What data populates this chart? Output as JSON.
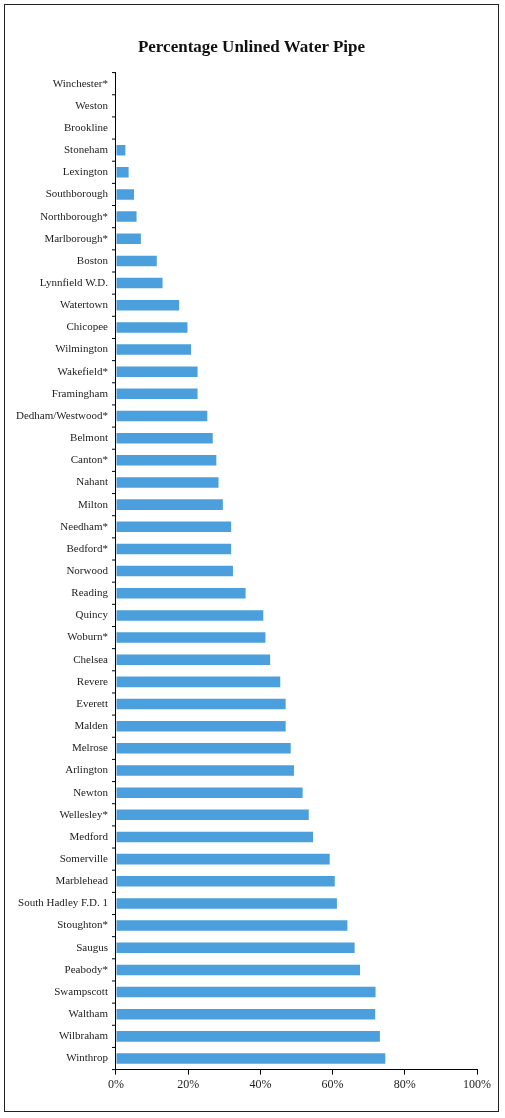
{
  "chart_data": {
    "type": "bar",
    "orientation": "horizontal",
    "title": "Percentage Unlined Water Pipe",
    "categories": [
      "Winchester*",
      "Weston",
      "Brookline",
      "Stoneham",
      "Lexington",
      "Southborough",
      "Northborough*",
      "Marlborough*",
      "Boston",
      "Lynnfield W.D.",
      "Watertown",
      "Chicopee",
      "Wilmington",
      "Wakefield*",
      "Framingham",
      "Dedham/Westwood*",
      "Belmont",
      "Canton*",
      "Nahant",
      "Milton",
      "Needham*",
      "Bedford*",
      "Norwood",
      "Reading",
      "Quincy",
      "Woburn*",
      "Chelsea",
      "Revere",
      "Everett",
      "Malden",
      "Melrose",
      "Arlington",
      "Newton",
      "Wellesley*",
      "Medford",
      "Somerville",
      "Marblehead",
      "South Hadley F.D. 1",
      "Stoughton*",
      "Saugus",
      "Peabody*",
      "Swampscott",
      "Waltham",
      "Wilbraham",
      "Winthrop"
    ],
    "values": [
      0,
      0,
      0,
      2.6,
      3.5,
      5.0,
      5.7,
      6.9,
      11.3,
      12.9,
      17.5,
      19.8,
      20.8,
      22.6,
      22.6,
      25.3,
      26.8,
      27.8,
      28.4,
      29.6,
      31.9,
      31.9,
      32.4,
      35.9,
      40.8,
      41.4,
      42.7,
      45.5,
      47.0,
      47.0,
      48.4,
      49.3,
      51.7,
      53.4,
      54.6,
      59.2,
      60.6,
      61.2,
      64.1,
      66.1,
      67.6,
      71.9,
      71.8,
      73.1,
      74.6
    ],
    "color": "#4a9fdc",
    "xlim": [
      0,
      100
    ],
    "xticks": [
      {
        "value": 0,
        "label": "0%"
      },
      {
        "value": 20,
        "label": "20%"
      },
      {
        "value": 40,
        "label": "40%"
      },
      {
        "value": 60,
        "label": "60%"
      },
      {
        "value": 80,
        "label": "80%"
      },
      {
        "value": 100,
        "label": "100%"
      }
    ],
    "grid": false,
    "legend": false
  }
}
